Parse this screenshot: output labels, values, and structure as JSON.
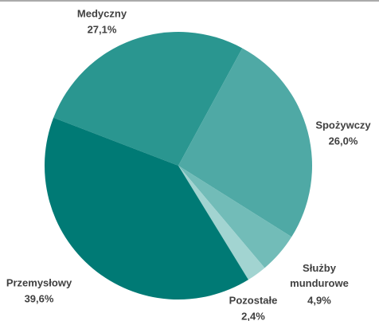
{
  "chart_data": {
    "type": "pie",
    "categories": [
      "Medyczny",
      "Spożywczy",
      "Służby mundurowe",
      "Pozostałe",
      "Przemysłowy"
    ],
    "values": [
      27.1,
      26.0,
      4.9,
      2.4,
      39.6
    ],
    "value_labels": [
      "27,1%",
      "26,0%",
      "4,9%",
      "2,4%",
      "39,6%"
    ],
    "colors": [
      "#2a9690",
      "#4fa9a5",
      "#72bcb8",
      "#a2d4d1",
      "#007a75"
    ]
  }
}
